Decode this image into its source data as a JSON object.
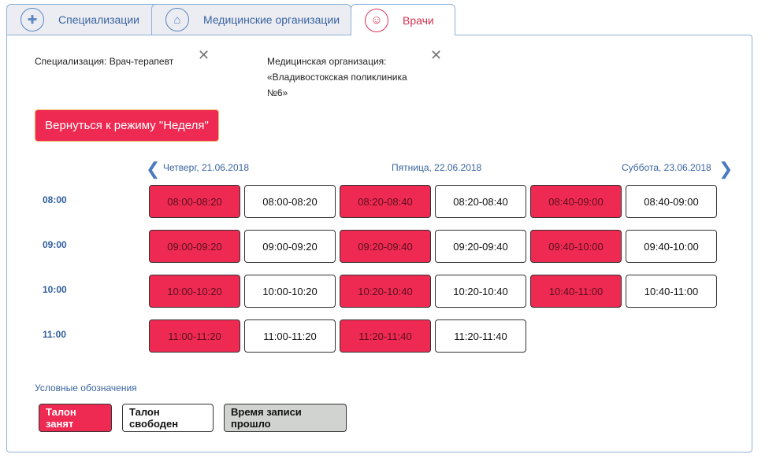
{
  "tabs": [
    {
      "label": "Специализации",
      "icon": "medical-case-icon"
    },
    {
      "label": "Медицинские организации",
      "icon": "hospital-icon"
    },
    {
      "label": "Врачи",
      "icon": "doctor-icon",
      "active": true
    }
  ],
  "filters": {
    "specialization": "Специализация: Врач-терапевт",
    "organization_label": "Медицинская организация:",
    "organization_value": "«Владивостокская поликлиника №6»"
  },
  "back_button": "Вернуться к режиму \"Неделя\"",
  "days": [
    "Четверг, 21.06.2018",
    "Пятница, 22.06.2018",
    "Суббота, 23.06.2018"
  ],
  "hours": [
    "08:00",
    "09:00",
    "10:00",
    "11:00"
  ],
  "slots": [
    [
      {
        "t": "08:00-08:20",
        "busy": true
      },
      {
        "t": "08:00-08:20",
        "busy": false
      },
      {
        "t": "08:20-08:40",
        "busy": true
      },
      {
        "t": "08:20-08:40",
        "busy": false
      },
      {
        "t": "08:40-09:00",
        "busy": true
      },
      {
        "t": "08:40-09:00",
        "busy": false
      }
    ],
    [
      {
        "t": "09:00-09:20",
        "busy": true
      },
      {
        "t": "09:00-09:20",
        "busy": false
      },
      {
        "t": "09:20-09:40",
        "busy": true
      },
      {
        "t": "09:20-09:40",
        "busy": false
      },
      {
        "t": "09:40-10:00",
        "busy": true
      },
      {
        "t": "09:40-10:00",
        "busy": false
      }
    ],
    [
      {
        "t": "10:00-10:20",
        "busy": true
      },
      {
        "t": "10:00-10:20",
        "busy": false
      },
      {
        "t": "10:20-10:40",
        "busy": true
      },
      {
        "t": "10:20-10:40",
        "busy": false
      },
      {
        "t": "10:40-11:00",
        "busy": true
      },
      {
        "t": "10:40-11:00",
        "busy": false
      }
    ],
    [
      {
        "t": "11:00-11:20",
        "busy": true
      },
      {
        "t": "11:00-11:20",
        "busy": false
      },
      {
        "t": "11:20-11:40",
        "busy": true
      },
      {
        "t": "11:20-11:40",
        "busy": false
      }
    ]
  ],
  "legend": {
    "title": "Условные обозначения",
    "busy": "Талон занят",
    "free": "Талон свободен",
    "past": "Время записи прошло"
  },
  "colors": {
    "busy": "#ef2a52",
    "past": "#d0d3cf",
    "accent": "#3a64a0"
  }
}
